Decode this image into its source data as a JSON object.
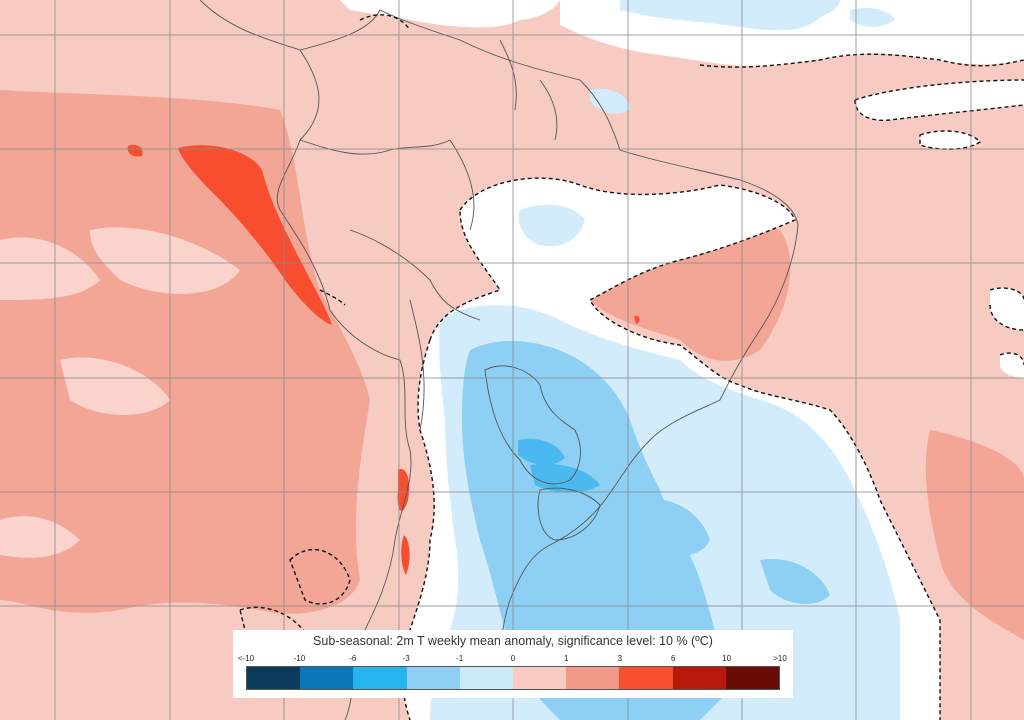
{
  "legend": {
    "title": "Sub-seasonal: 2m T weekly mean anomaly, significance level: 10 % (ºC)",
    "ticks": [
      "<-10",
      "-10",
      "-6",
      "-3",
      "-1",
      "0",
      "1",
      "3",
      "6",
      "10",
      ">10"
    ],
    "colors": [
      "#0d3b5e",
      "#0b77b8",
      "#27b2f0",
      "#8ed0f3",
      "#cdeafa",
      "#f9cbc3",
      "#f3998a",
      "#f64e2f",
      "#b71a08",
      "#6a0c05"
    ]
  },
  "map": {
    "region": "South America and surrounding oceans",
    "non_significant_color": "#ffffff",
    "grid": true
  }
}
